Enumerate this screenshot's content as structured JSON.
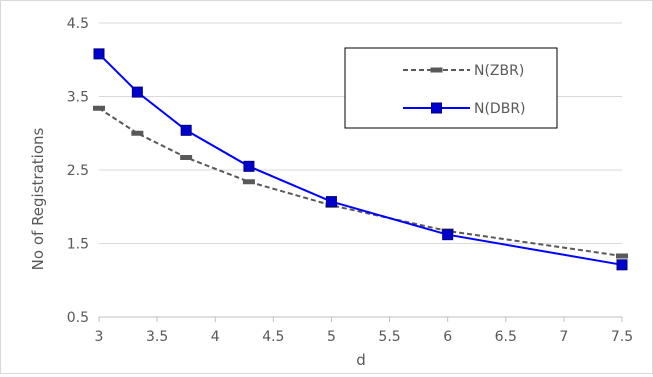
{
  "chart_data": {
    "type": "line",
    "title": "",
    "xlabel": "d",
    "ylabel": "No of Registrations",
    "xlim": [
      3,
      7.5
    ],
    "ylim": [
      0.5,
      4.5
    ],
    "x_ticks": [
      "3",
      "3.5",
      "4",
      "4.5",
      "5",
      "5.5",
      "6",
      "6.5",
      "7",
      "7.5"
    ],
    "y_ticks": [
      "0.5",
      "1.5",
      "2.5",
      "3.5",
      "4.5"
    ],
    "grid": "horizontal",
    "legend_position": "top-right",
    "series": [
      {
        "name": "N(ZBR)",
        "color": "#595959",
        "line_style": "dashed",
        "marker": "dash",
        "x": [
          3,
          3.33,
          3.75,
          4.29,
          5,
          6,
          7.5
        ],
        "y": [
          3.34,
          3.0,
          2.67,
          2.34,
          2.02,
          1.67,
          1.33
        ]
      },
      {
        "name": "N(DBR)",
        "color": "#0000ff",
        "marker_color": "#0000cc",
        "line_style": "solid",
        "marker": "square",
        "x": [
          3,
          3.33,
          3.75,
          4.29,
          5,
          6,
          7.5
        ],
        "y": [
          4.08,
          3.56,
          3.04,
          2.55,
          2.07,
          1.62,
          1.21
        ]
      }
    ]
  }
}
